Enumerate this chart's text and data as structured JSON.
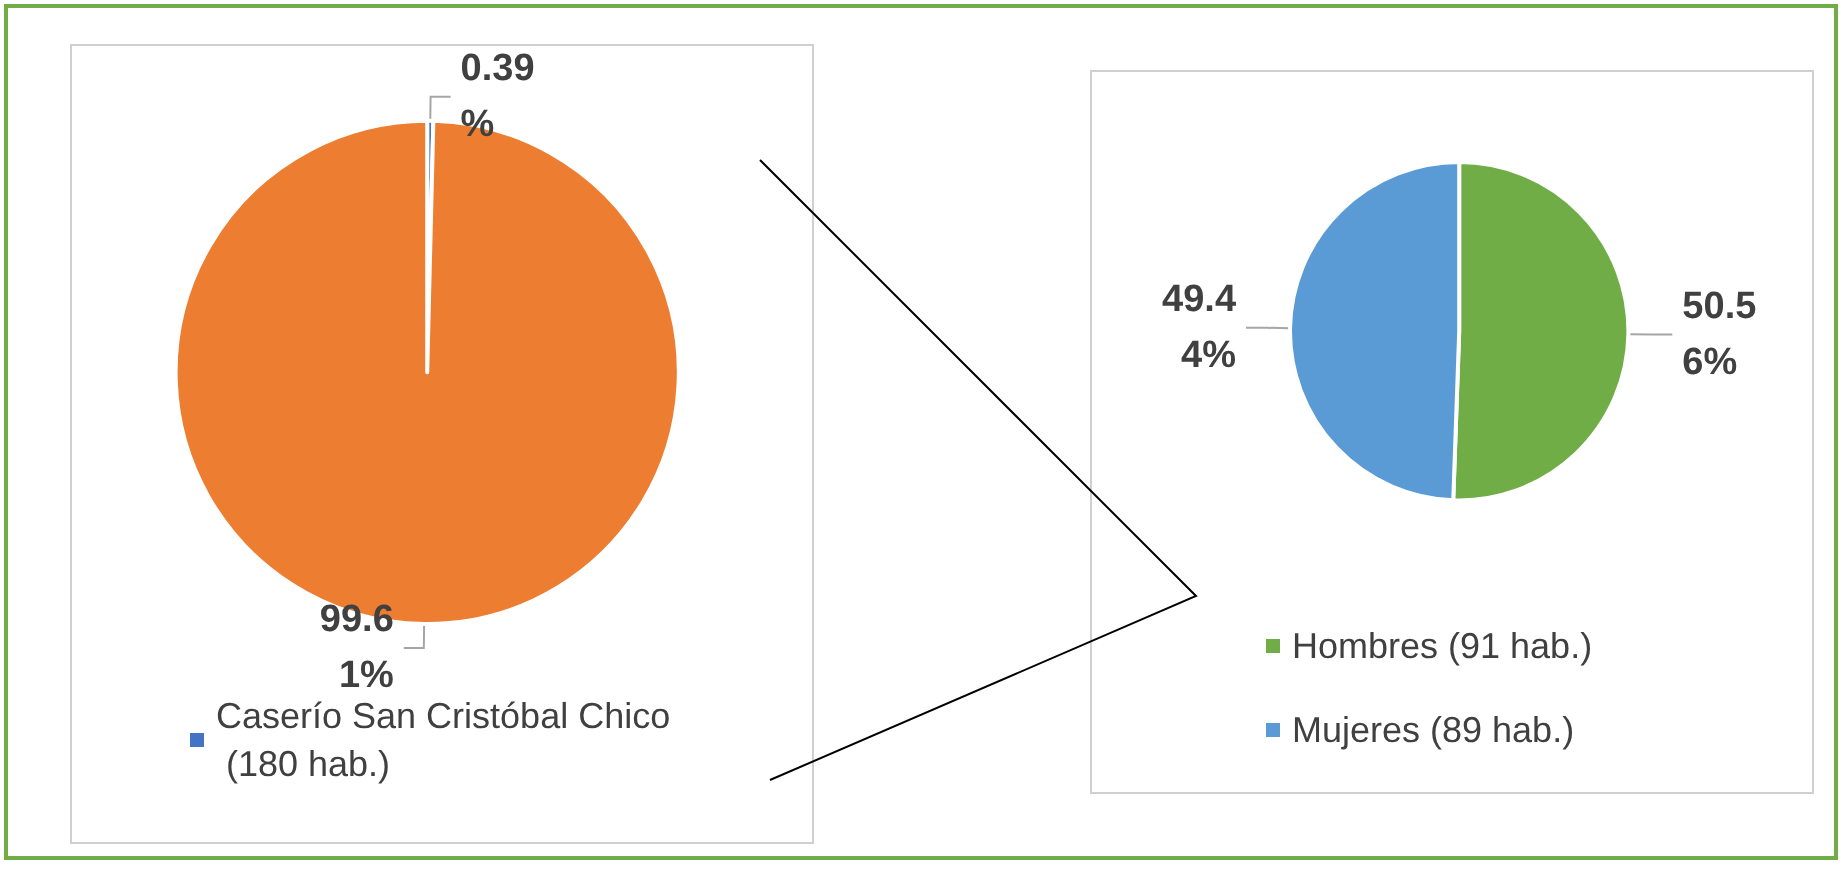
{
  "chart_data": [
    {
      "type": "pie",
      "categories": [
        "Caserío San Cristóbal Chico (180 hab.)",
        null
      ],
      "values": [
        0.39,
        99.61
      ],
      "colors": [
        "#4472c4",
        "#ed7d31"
      ],
      "value_labels": [
        "0.39%",
        "99.61%"
      ],
      "legend": "bottom"
    },
    {
      "type": "pie",
      "categories": [
        "Hombres (91 hab.)",
        "Mujeres (89 hab.)"
      ],
      "values": [
        50.56,
        49.44
      ],
      "colors": [
        "#70ad47",
        "#5b9bd5"
      ],
      "value_labels": [
        "50.56%",
        "49.44%"
      ],
      "legend": "bottom"
    }
  ]
}
